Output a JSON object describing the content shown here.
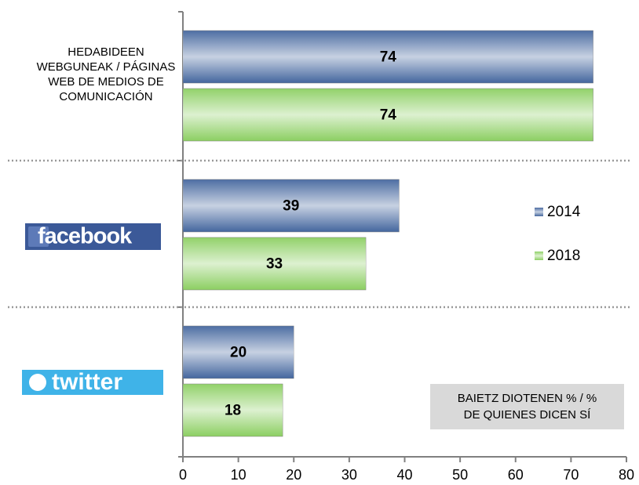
{
  "chart_data": {
    "type": "hbar",
    "categories": [
      "HEDABIDEEN WEBGUNEAK / PÁGINAS WEB DE MEDIOS DE COMUNICACIÓN",
      "facebook",
      "twitter"
    ],
    "series": [
      {
        "name": "2014",
        "color": "#44669e",
        "values": [
          74,
          39,
          20
        ]
      },
      {
        "name": "2018",
        "color": "#8ccf62",
        "values": [
          74,
          33,
          18
        ]
      }
    ],
    "xlim": [
      0,
      80
    ],
    "xticks": [
      0,
      10,
      20,
      30,
      40,
      50,
      60,
      70,
      80
    ],
    "legend": "right",
    "annotation": "BAIETZ DIOTENEN % / % DE QUIENES DICEN SÍ"
  }
}
